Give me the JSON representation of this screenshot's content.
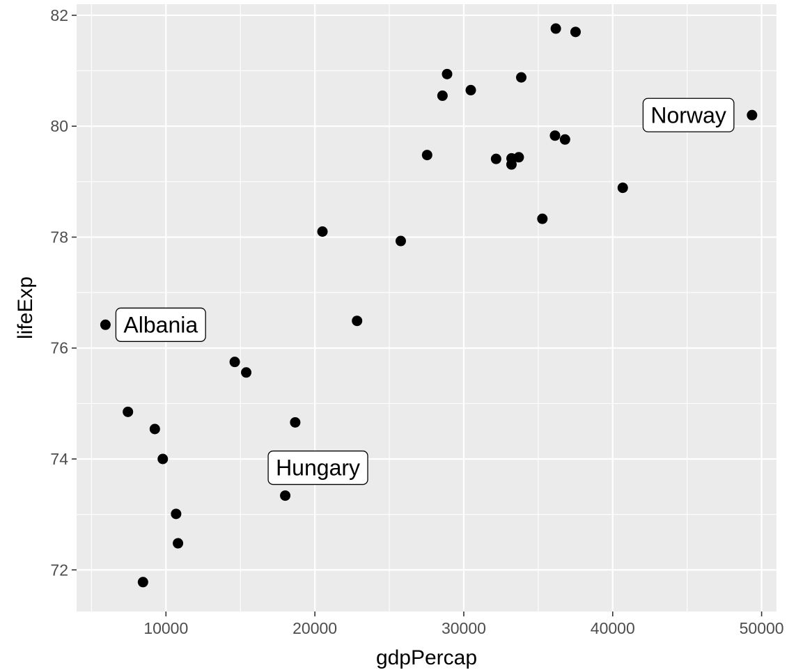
{
  "chart_data": {
    "type": "scatter",
    "title": "",
    "xlabel": "gdpPercap",
    "ylabel": "lifeExp",
    "xlim": [
      4000,
      51000
    ],
    "ylim": [
      71.25,
      82.2
    ],
    "x_ticks": [
      10000,
      20000,
      30000,
      40000,
      50000
    ],
    "x_tick_labels": [
      "10000",
      "20000",
      "30000",
      "40000",
      "50000"
    ],
    "y_ticks": [
      72,
      74,
      76,
      78,
      80,
      82
    ],
    "y_tick_labels": [
      "72",
      "74",
      "76",
      "78",
      "80",
      "82"
    ],
    "grid": true,
    "legend": "none",
    "colors": {
      "panel": "#ebebeb",
      "grid": "#ffffff",
      "point": "#000000",
      "label_fill": "#ffffff",
      "label_border": "#000000"
    },
    "points": [
      {
        "x": 5937,
        "y": 76.42
      },
      {
        "x": 7446,
        "y": 74.85
      },
      {
        "x": 8458,
        "y": 71.78
      },
      {
        "x": 9253,
        "y": 74.54
      },
      {
        "x": 9787,
        "y": 74.0
      },
      {
        "x": 10681,
        "y": 73.01
      },
      {
        "x": 10808,
        "y": 72.48
      },
      {
        "x": 14619,
        "y": 75.75
      },
      {
        "x": 15390,
        "y": 75.56
      },
      {
        "x": 18009,
        "y": 73.34
      },
      {
        "x": 18679,
        "y": 74.66
      },
      {
        "x": 20510,
        "y": 78.1
      },
      {
        "x": 22833,
        "y": 76.49
      },
      {
        "x": 25768,
        "y": 77.93
      },
      {
        "x": 27538,
        "y": 79.48
      },
      {
        "x": 28569,
        "y": 80.55
      },
      {
        "x": 28878,
        "y": 80.94
      },
      {
        "x": 30470,
        "y": 80.65
      },
      {
        "x": 32170,
        "y": 79.41
      },
      {
        "x": 33207,
        "y": 79.42
      },
      {
        "x": 33203,
        "y": 79.31
      },
      {
        "x": 33692,
        "y": 79.44
      },
      {
        "x": 33860,
        "y": 80.88
      },
      {
        "x": 35278,
        "y": 78.33
      },
      {
        "x": 36126,
        "y": 79.83
      },
      {
        "x": 36181,
        "y": 81.76
      },
      {
        "x": 36798,
        "y": 79.76
      },
      {
        "x": 37506,
        "y": 81.7
      },
      {
        "x": 40676,
        "y": 78.89
      },
      {
        "x": 49357,
        "y": 80.2
      }
    ],
    "labels": [
      {
        "text": "Albania",
        "x": 5937,
        "y": 76.42,
        "side": "right"
      },
      {
        "text": "Hungary",
        "x": 18009,
        "y": 73.34,
        "side": "above"
      },
      {
        "text": "Norway",
        "x": 49357,
        "y": 80.2,
        "side": "left"
      }
    ]
  }
}
